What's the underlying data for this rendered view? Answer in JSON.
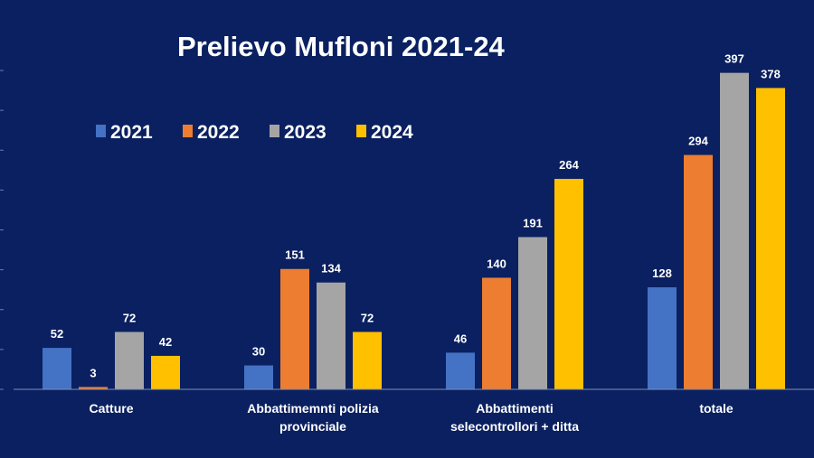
{
  "chart_data": {
    "type": "bar",
    "title": "Prelievo Mufloni 2021-24",
    "categories": [
      [
        "Catture"
      ],
      [
        "Abbattimemnti polizia",
        "provinciale"
      ],
      [
        "Abbattimenti",
        "selecontrollori + ditta"
      ],
      [
        "totale"
      ]
    ],
    "series": [
      {
        "name": "2021",
        "color": "#4472c4",
        "values": [
          52,
          30,
          46,
          128
        ]
      },
      {
        "name": "2022",
        "color": "#ed7d31",
        "values": [
          3,
          151,
          140,
          294
        ]
      },
      {
        "name": "2023",
        "color": "#a5a5a5",
        "values": [
          72,
          134,
          191,
          397
        ]
      },
      {
        "name": "2024",
        "color": "#ffc000",
        "values": [
          42,
          72,
          264,
          378
        ]
      }
    ],
    "ylim": [
      0,
      400
    ],
    "grid": false,
    "legend": "top-left",
    "xlabel": "",
    "ylabel": ""
  }
}
